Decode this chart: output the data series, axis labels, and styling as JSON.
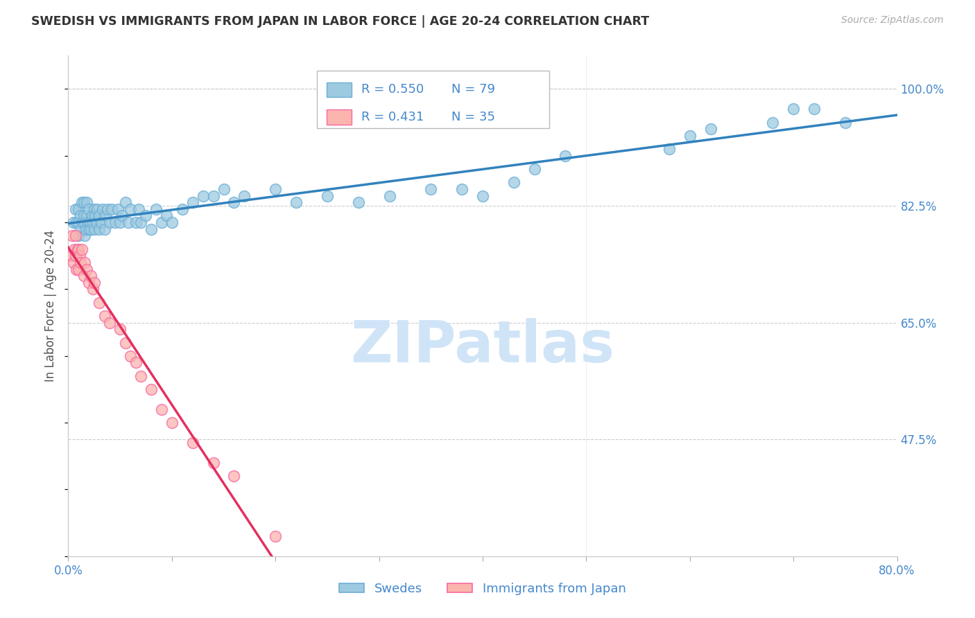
{
  "title": "SWEDISH VS IMMIGRANTS FROM JAPAN IN LABOR FORCE | AGE 20-24 CORRELATION CHART",
  "source": "Source: ZipAtlas.com",
  "ylabel": "In Labor Force | Age 20-24",
  "xlim": [
    0.0,
    0.8
  ],
  "ylim": [
    0.3,
    1.05
  ],
  "xticks": [
    0.0,
    0.1,
    0.2,
    0.3,
    0.4,
    0.5,
    0.6,
    0.7,
    0.8
  ],
  "xticklabels": [
    "0.0%",
    "",
    "",
    "",
    "",
    "",
    "",
    "",
    "80.0%"
  ],
  "yticks": [
    0.475,
    0.65,
    0.825,
    1.0
  ],
  "yticklabels": [
    "47.5%",
    "65.0%",
    "82.5%",
    "100.0%"
  ],
  "legend_blue_r": "0.550",
  "legend_blue_n": "79",
  "legend_pink_r": "0.431",
  "legend_pink_n": "35",
  "blue_color": "#9ecae1",
  "pink_color": "#fbb4ae",
  "blue_edge_color": "#6baed6",
  "pink_edge_color": "#f768a1",
  "blue_line_color": "#3182bd",
  "pink_line_color": "#e3305f",
  "grid_color": "#cccccc",
  "title_color": "#333333",
  "axis_tick_color": "#4488cc",
  "watermark_color": "#d0e4f7",
  "blue_scatter_x": [
    0.005,
    0.007,
    0.008,
    0.01,
    0.01,
    0.01,
    0.012,
    0.012,
    0.013,
    0.014,
    0.015,
    0.015,
    0.016,
    0.016,
    0.017,
    0.018,
    0.018,
    0.019,
    0.02,
    0.02,
    0.021,
    0.022,
    0.023,
    0.024,
    0.025,
    0.025,
    0.026,
    0.027,
    0.028,
    0.03,
    0.03,
    0.032,
    0.033,
    0.035,
    0.036,
    0.038,
    0.04,
    0.042,
    0.045,
    0.048,
    0.05,
    0.052,
    0.055,
    0.058,
    0.06,
    0.065,
    0.068,
    0.07,
    0.075,
    0.08,
    0.085,
    0.09,
    0.095,
    0.1,
    0.11,
    0.12,
    0.13,
    0.14,
    0.15,
    0.16,
    0.17,
    0.2,
    0.22,
    0.25,
    0.28,
    0.31,
    0.35,
    0.38,
    0.4,
    0.43,
    0.45,
    0.48,
    0.58,
    0.6,
    0.62,
    0.68,
    0.7,
    0.72,
    0.75
  ],
  "blue_scatter_y": [
    0.8,
    0.82,
    0.8,
    0.78,
    0.8,
    0.82,
    0.79,
    0.81,
    0.83,
    0.8,
    0.81,
    0.83,
    0.78,
    0.8,
    0.79,
    0.81,
    0.83,
    0.8,
    0.79,
    0.82,
    0.8,
    0.79,
    0.81,
    0.8,
    0.79,
    0.82,
    0.81,
    0.8,
    0.82,
    0.79,
    0.81,
    0.8,
    0.82,
    0.79,
    0.81,
    0.82,
    0.8,
    0.82,
    0.8,
    0.82,
    0.8,
    0.81,
    0.83,
    0.8,
    0.82,
    0.8,
    0.82,
    0.8,
    0.81,
    0.79,
    0.82,
    0.8,
    0.81,
    0.8,
    0.82,
    0.83,
    0.84,
    0.84,
    0.85,
    0.83,
    0.84,
    0.85,
    0.83,
    0.84,
    0.83,
    0.84,
    0.85,
    0.85,
    0.84,
    0.86,
    0.88,
    0.9,
    0.91,
    0.93,
    0.94,
    0.95,
    0.97,
    0.97,
    0.95
  ],
  "pink_scatter_x": [
    0.003,
    0.004,
    0.005,
    0.006,
    0.007,
    0.007,
    0.008,
    0.009,
    0.01,
    0.01,
    0.011,
    0.012,
    0.013,
    0.015,
    0.016,
    0.018,
    0.02,
    0.022,
    0.024,
    0.025,
    0.03,
    0.035,
    0.04,
    0.05,
    0.055,
    0.06,
    0.065,
    0.07,
    0.08,
    0.09,
    0.1,
    0.12,
    0.14,
    0.16,
    0.2
  ],
  "pink_scatter_y": [
    0.75,
    0.78,
    0.74,
    0.76,
    0.75,
    0.78,
    0.73,
    0.76,
    0.73,
    0.76,
    0.75,
    0.74,
    0.76,
    0.72,
    0.74,
    0.73,
    0.71,
    0.72,
    0.7,
    0.71,
    0.68,
    0.66,
    0.65,
    0.64,
    0.62,
    0.6,
    0.59,
    0.57,
    0.55,
    0.52,
    0.5,
    0.47,
    0.44,
    0.42,
    0.33
  ],
  "legend_label_blue": "Swedes",
  "legend_label_pink": "Immigrants from Japan"
}
